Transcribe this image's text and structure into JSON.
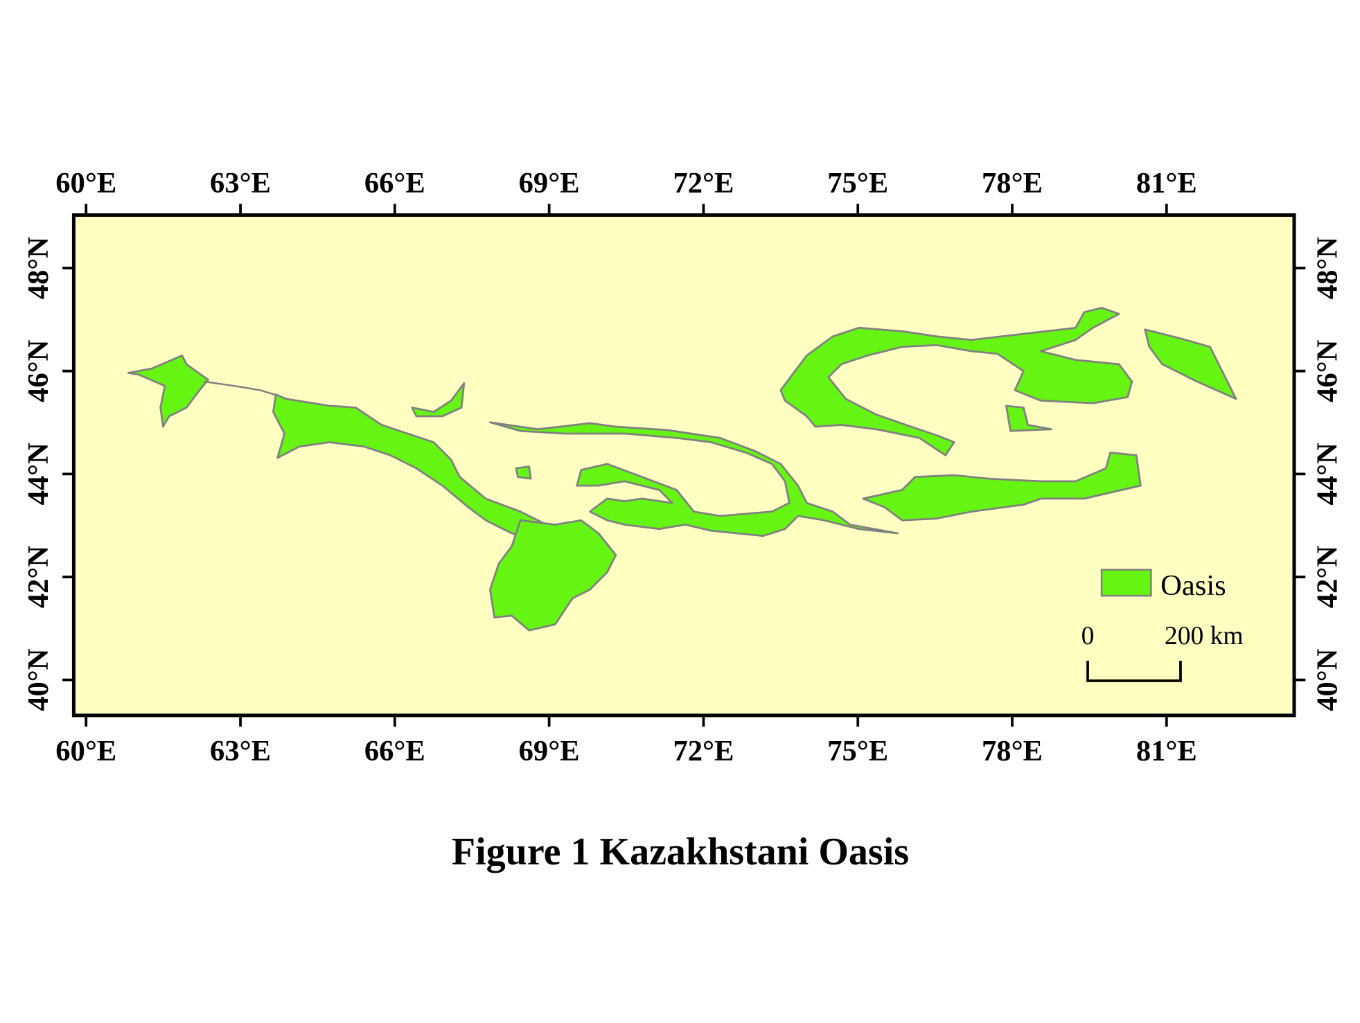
{
  "map": {
    "title": "Figure 1  Kazakhstani Oasis",
    "xlim": [
      59.76,
      83.48
    ],
    "ylim": [
      39.31,
      49.03
    ],
    "xticks": [
      {
        "value": 60,
        "label": "60°E"
      },
      {
        "value": 63,
        "label": "63°E"
      },
      {
        "value": 66,
        "label": "66°E"
      },
      {
        "value": 69,
        "label": "69°E"
      },
      {
        "value": 72,
        "label": "72°E"
      },
      {
        "value": 75,
        "label": "75°E"
      },
      {
        "value": 78,
        "label": "78°E"
      },
      {
        "value": 81,
        "label": "81°E"
      }
    ],
    "yticks": [
      {
        "value": 40,
        "label": "40°N"
      },
      {
        "value": 42,
        "label": "42°N"
      },
      {
        "value": 44,
        "label": "44°N"
      },
      {
        "value": 46,
        "label": "46°N"
      },
      {
        "value": 48,
        "label": "48°N"
      }
    ],
    "legend": {
      "label": "Oasis",
      "color": "#66f512"
    },
    "scale_bar": {
      "start": "0",
      "end": "200 km"
    }
  }
}
